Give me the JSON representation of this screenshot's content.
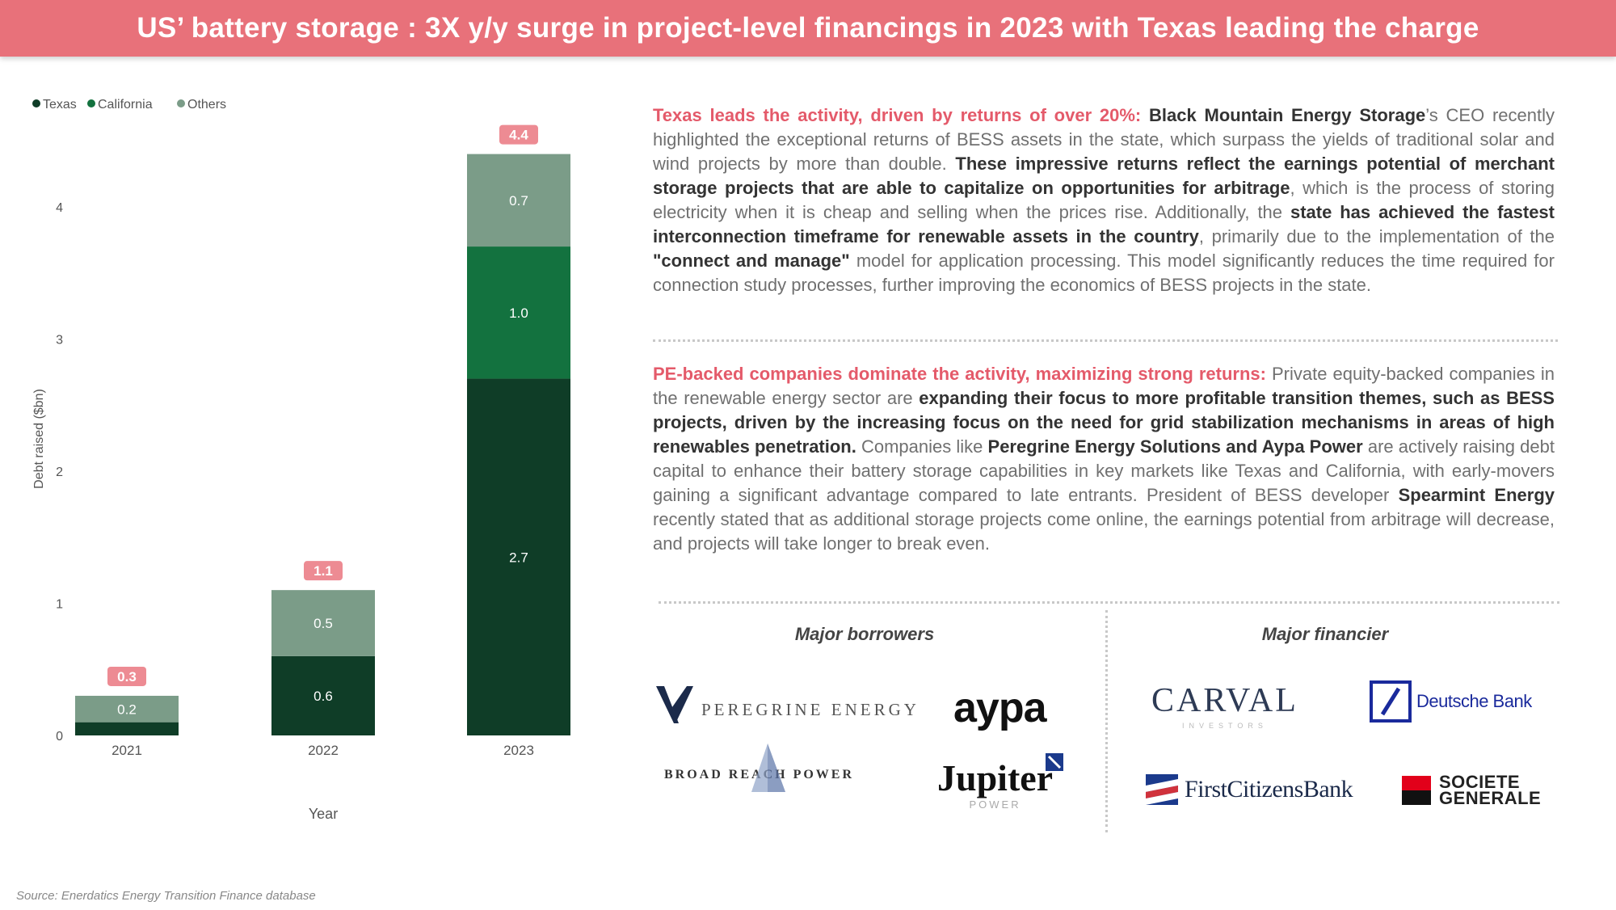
{
  "title": "US’ battery storage : 3X y/y surge in project-level financings in 2023 with Texas leading the charge",
  "colors": {
    "banner": "#e8717a",
    "texas": "#0f3d27",
    "california": "#13723f",
    "others": "#7b9c88",
    "total_badge": "#ed8b93",
    "highlight": "#e45a6a"
  },
  "chart_data": {
    "type": "bar",
    "stacked": true,
    "categories": [
      "2021",
      "2022",
      "2023"
    ],
    "series": [
      {
        "name": "Texas",
        "values": [
          0.1,
          0.6,
          2.7
        ],
        "labels": [
          "",
          "0.6",
          "2.7"
        ]
      },
      {
        "name": "California",
        "values": [
          0.0,
          0.0,
          1.0
        ],
        "labels": [
          "",
          "",
          "1.0"
        ]
      },
      {
        "name": "Others",
        "values": [
          0.2,
          0.5,
          0.7
        ],
        "labels": [
          "0.2",
          "0.5",
          "0.7"
        ]
      }
    ],
    "totals": [
      "0.3",
      "1.1",
      "4.4"
    ],
    "total_values": [
      0.3,
      1.1,
      4.4
    ],
    "xlabel": "Year",
    "ylabel": "Debt raised ($bn)",
    "ylim": [
      0,
      4.4
    ],
    "yticks": [
      "0",
      "1",
      "2",
      "3",
      "4"
    ],
    "legend_position": "top-left",
    "grid": false
  },
  "para1": {
    "s1": "Texas leads the activity, driven by returns of over 20%: ",
    "s2": "Black Mountain Energy Storage",
    "s3": "’s CEO recently highlighted the exceptional returns of BESS assets in the state, which surpass the yields of traditional solar and wind projects by more than double. ",
    "s4": "These impressive returns reflect the earnings potential of merchant storage projects that are able to capitalize on opportunities for arbitrage",
    "s5": ", which is the process of storing electricity when it is cheap and selling when the prices rise. Additionally, the ",
    "s6": "state has achieved the fastest interconnection timeframe for renewable assets in the country",
    "s7": ", primarily due to the implementation of the ",
    "s8": "\"connect and manage\"",
    "s9": " model for application processing. This model significantly reduces the time required for connection study processes, further  improving the economics of BESS projects in the state."
  },
  "para2": {
    "s1": "PE-backed companies dominate the activity, maximizing strong returns: ",
    "s2": "Private equity-backed companies in the renewable energy sector are ",
    "s3": "expanding their focus to more profitable transition themes, such as BESS projects, driven by the increasing focus on the need for grid stabilization mechanisms in areas of high renewables penetration.",
    "s4": " Companies like ",
    "s5": "Peregrine Energy Solutions and Aypa Power",
    "s6": " are actively raising debt capital to enhance their battery storage capabilities in key markets like Texas and California, with early-movers gaining a significant advantage compared to late entrants. President of BESS developer ",
    "s7": "Spearmint Energy",
    "s8": " recently stated that as additional storage projects come online, the earnings potential from arbitrage will decrease, and projects will take longer to break even."
  },
  "borrowers": {
    "heading": "Major borrowers",
    "peregrine": "PEREGRINE ENERGY",
    "aypa": "aypa",
    "broad_reach": "BROAD REACH POWER",
    "jupiter": "Jupiter",
    "jupiter_sub": "POWER"
  },
  "financiers": {
    "heading": "Major financier",
    "carval": "CARVAL",
    "carval_sub": "INVESTORS",
    "deutsche": "Deutsche Bank",
    "firstcitizens": "FirstCitizensBank",
    "socgen_line1": "SOCIETE",
    "socgen_line2": "GENERALE"
  },
  "source": "Source: Enerdatics Energy Transition Finance database"
}
